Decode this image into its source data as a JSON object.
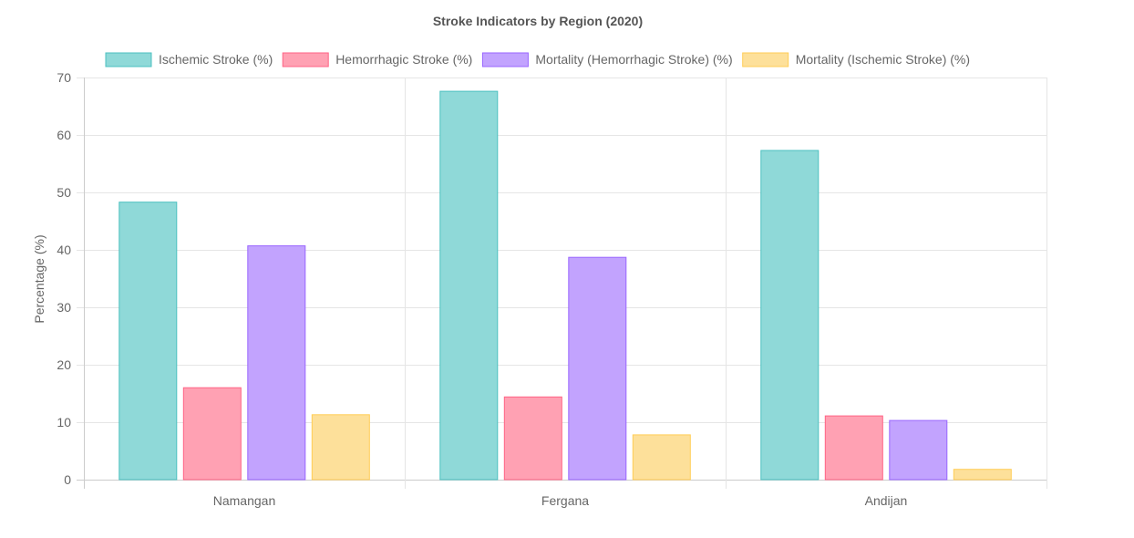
{
  "chart_data": {
    "type": "bar",
    "title": "Stroke Indicators by Region (2020)",
    "xlabel": "",
    "ylabel": "Percentage (%)",
    "categories": [
      "Namangan",
      "Fergana",
      "Andijan"
    ],
    "ylim": [
      0,
      70
    ],
    "yticks": [
      0,
      10,
      20,
      30,
      40,
      50,
      60,
      70
    ],
    "grid": true,
    "legend_position": "top",
    "series": [
      {
        "name": "Ischemic Stroke (%)",
        "values": [
          48.3,
          67.6,
          57.3
        ],
        "fill": "#8fd9d8",
        "stroke": "#4bc0c0"
      },
      {
        "name": "Hemorrhagic Stroke (%)",
        "values": [
          16.0,
          14.4,
          11.1
        ],
        "fill": "#ffa1b3",
        "stroke": "#ff6384"
      },
      {
        "name": "Mortality (Hemorrhagic Stroke) (%)",
        "values": [
          40.7,
          38.7,
          10.3
        ],
        "fill": "#c2a3fe",
        "stroke": "#9966ff"
      },
      {
        "name": "Mortality (Ischemic Stroke) (%)",
        "values": [
          11.3,
          7.8,
          1.8
        ],
        "fill": "#fde09a",
        "stroke": "#ffcd56"
      }
    ]
  }
}
